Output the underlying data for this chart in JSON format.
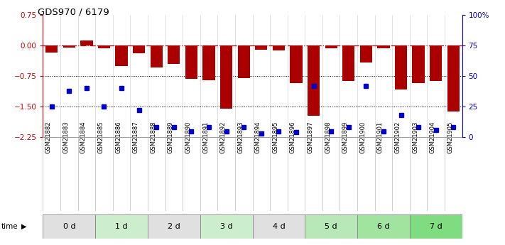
{
  "title": "GDS970 / 6179",
  "samples": [
    "GSM21882",
    "GSM21883",
    "GSM21884",
    "GSM21885",
    "GSM21886",
    "GSM21887",
    "GSM21888",
    "GSM21889",
    "GSM21890",
    "GSM21891",
    "GSM21892",
    "GSM21893",
    "GSM21894",
    "GSM21895",
    "GSM21896",
    "GSM21897",
    "GSM21898",
    "GSM21899",
    "GSM21900",
    "GSM21901",
    "GSM21902",
    "GSM21903",
    "GSM21904",
    "GSM21905"
  ],
  "log_ratio": [
    -0.18,
    -0.05,
    0.12,
    -0.08,
    -0.5,
    -0.2,
    -0.55,
    -0.45,
    -0.82,
    -0.85,
    -1.55,
    -0.8,
    -0.1,
    -0.12,
    -0.92,
    -1.72,
    -0.08,
    -0.88,
    -0.42,
    -0.08,
    -1.08,
    -0.92,
    -0.88,
    -1.62
  ],
  "percentile_right": [
    25,
    38,
    40,
    25,
    40,
    22,
    8,
    8,
    5,
    8,
    5,
    8,
    3,
    5,
    4,
    42,
    5,
    8,
    42,
    5,
    18,
    8,
    6,
    8
  ],
  "time_groups": [
    {
      "label": "0 d",
      "start": 0,
      "end": 3,
      "color": "#e0e0e0"
    },
    {
      "label": "1 d",
      "start": 3,
      "end": 6,
      "color": "#cceecc"
    },
    {
      "label": "2 d",
      "start": 6,
      "end": 9,
      "color": "#e0e0e0"
    },
    {
      "label": "3 d",
      "start": 9,
      "end": 12,
      "color": "#cceecc"
    },
    {
      "label": "4 d",
      "start": 12,
      "end": 15,
      "color": "#e0e0e0"
    },
    {
      "label": "5 d",
      "start": 15,
      "end": 18,
      "color": "#b8e8b8"
    },
    {
      "label": "6 d",
      "start": 18,
      "end": 21,
      "color": "#a0e4a0"
    },
    {
      "label": "7 d",
      "start": 21,
      "end": 24,
      "color": "#80dc80"
    }
  ],
  "ylim_left": [
    -2.25,
    0.75
  ],
  "ylim_right": [
    0,
    100
  ],
  "yticks_left": [
    0.75,
    0,
    -0.75,
    -1.5,
    -2.25
  ],
  "yticks_right": [
    100,
    75,
    50,
    25,
    0
  ],
  "bar_color": "#aa0000",
  "dot_color": "#0000cc",
  "hline_color": "#cc0000"
}
